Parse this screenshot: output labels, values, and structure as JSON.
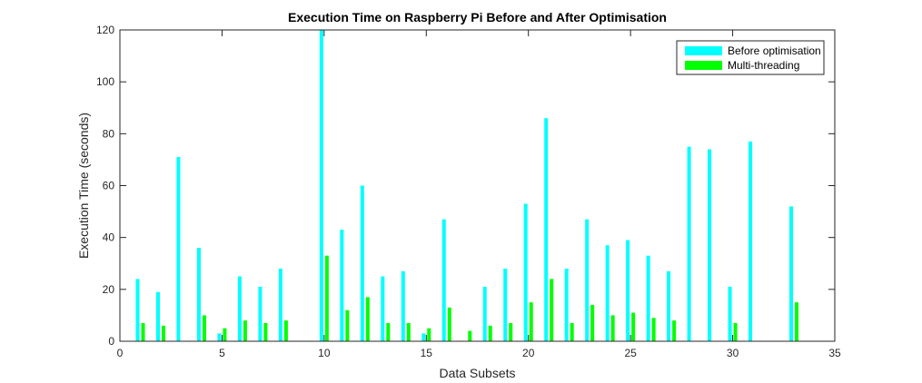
{
  "chart_data": {
    "type": "bar",
    "title": "Execution Time on Raspberry Pi Before and After Optimisation",
    "xlabel": "Data Subsets",
    "ylabel": "Execution Time (seconds)",
    "xlim": [
      0,
      35
    ],
    "ylim": [
      0,
      120
    ],
    "xticks": [
      0,
      5,
      10,
      15,
      20,
      25,
      30,
      35
    ],
    "yticks": [
      0,
      20,
      40,
      60,
      80,
      100,
      120
    ],
    "grid": false,
    "legend_position": "top-right",
    "x": [
      1,
      2,
      3,
      4,
      5,
      6,
      7,
      8,
      9,
      10,
      11,
      12,
      13,
      14,
      15,
      16,
      17,
      18,
      19,
      20,
      21,
      22,
      23,
      24,
      25,
      26,
      27,
      28,
      29,
      30,
      31,
      32,
      33
    ],
    "series": [
      {
        "name": "Before optimisation",
        "color": "#00ffff",
        "values": [
          24,
          19,
          71,
          36,
          3,
          25,
          21,
          28,
          0,
          120,
          43,
          60,
          25,
          27,
          3,
          47,
          0,
          21,
          28,
          53,
          86,
          28,
          47,
          37,
          39,
          33,
          27,
          75,
          74,
          21,
          77,
          0,
          52
        ]
      },
      {
        "name": "Multi-threading",
        "color": "#00ff00",
        "values": [
          7,
          6,
          0,
          10,
          5,
          8,
          7,
          8,
          0,
          33,
          12,
          17,
          7,
          7,
          5,
          13,
          4,
          6,
          7,
          15,
          24,
          7,
          14,
          10,
          11,
          9,
          8,
          0,
          0,
          7,
          0,
          0,
          15
        ]
      }
    ]
  }
}
